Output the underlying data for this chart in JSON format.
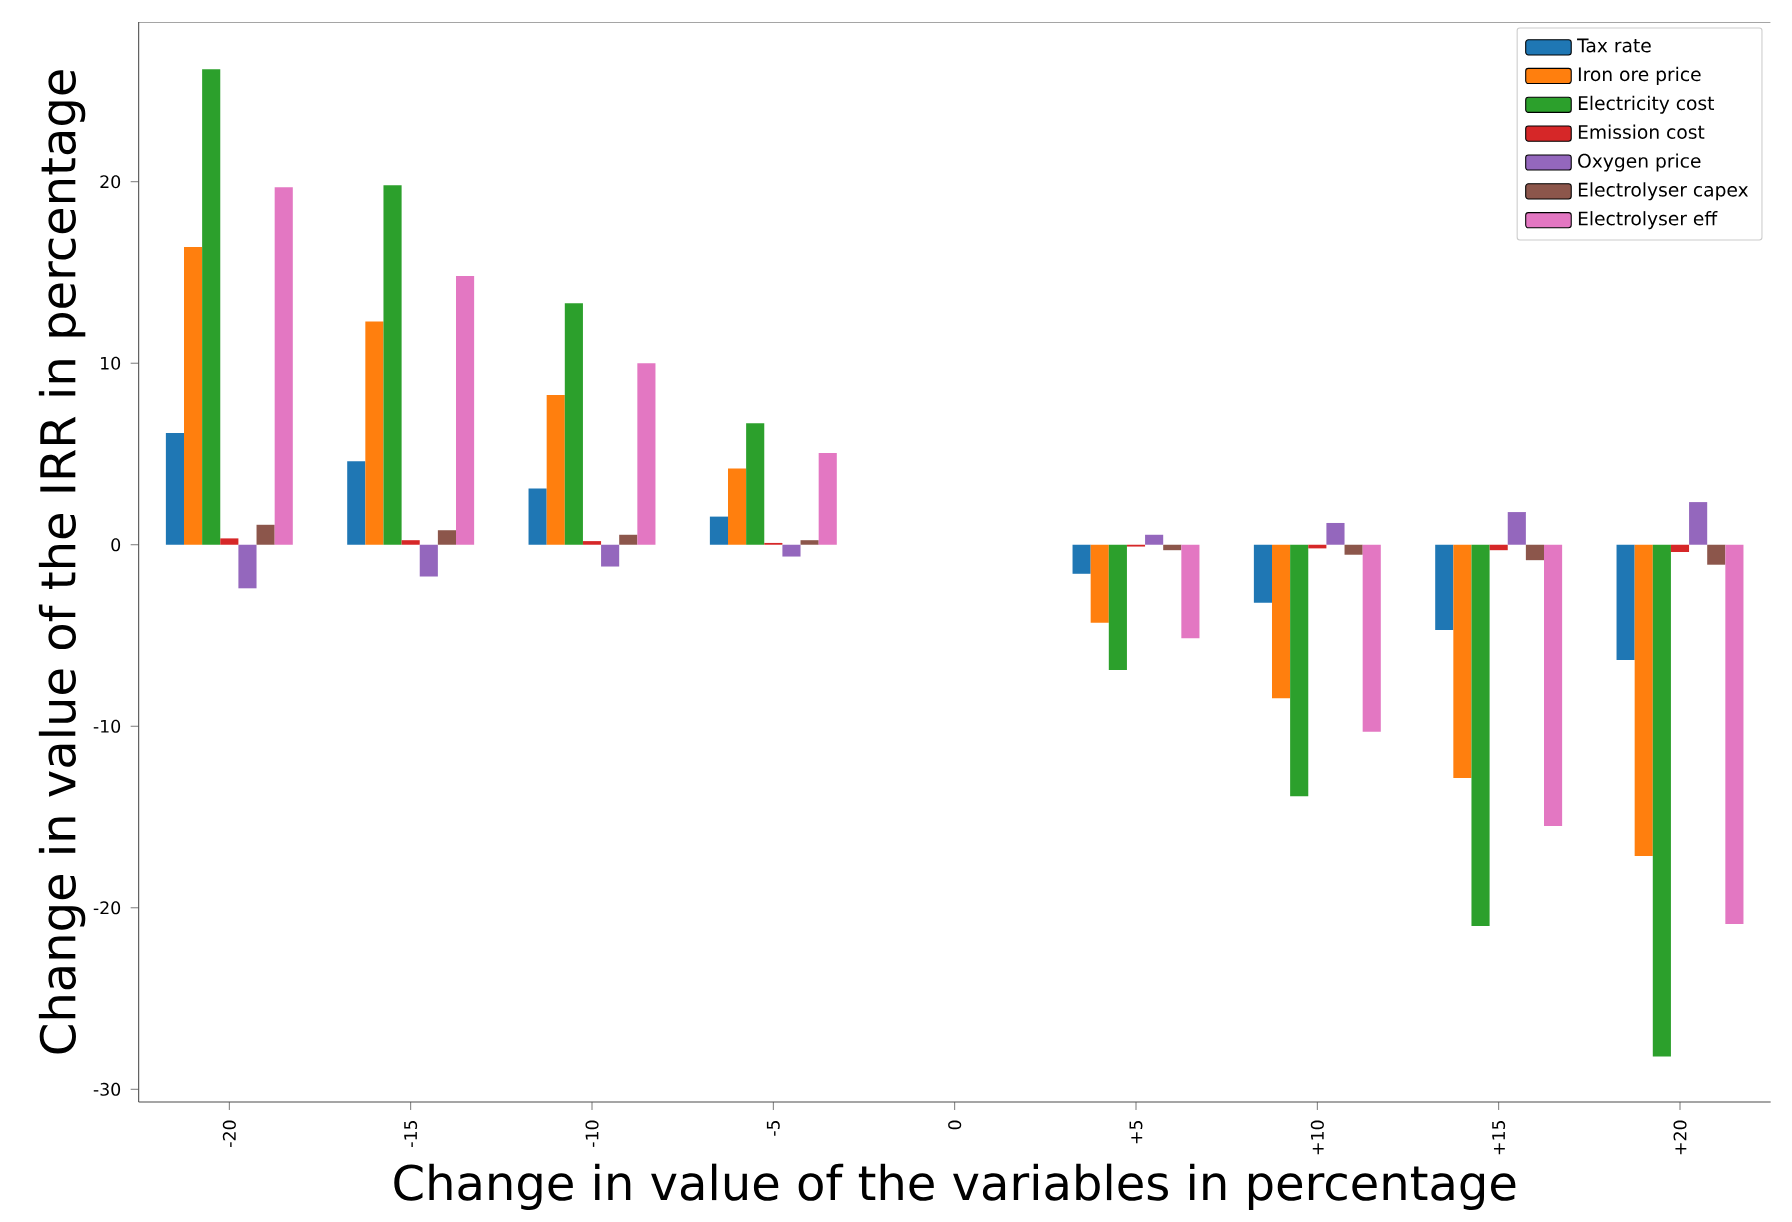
{
  "chart_data": {
    "type": "bar",
    "xlabel": "Change in value of the variables in percentage",
    "ylabel": "Change in value of the IRR in percentage",
    "categories": [
      "-20",
      "-15",
      "-10",
      "-5",
      "0",
      "+5",
      "+10",
      "+15",
      "+20"
    ],
    "series": [
      {
        "name": "Tax rate",
        "color": "#1f77b4",
        "values": [
          6.15,
          4.6,
          3.1,
          1.55,
          0,
          -1.6,
          -3.2,
          -4.7,
          -6.35
        ]
      },
      {
        "name": "Iron ore price",
        "color": "#ff7f0e",
        "values": [
          16.4,
          12.3,
          8.25,
          4.2,
          0,
          -4.3,
          -8.45,
          -12.85,
          -17.15
        ]
      },
      {
        "name": "Electricity cost",
        "color": "#2ca02c",
        "values": [
          26.2,
          19.8,
          13.3,
          6.7,
          0,
          -6.9,
          -13.85,
          -21,
          -28.2
        ]
      },
      {
        "name": "Emission cost",
        "color": "#d62728",
        "values": [
          0.35,
          0.25,
          0.2,
          0.1,
          0,
          -0.1,
          -0.2,
          -0.3,
          -0.4
        ]
      },
      {
        "name": "Oxygen price",
        "color": "#9467bd",
        "values": [
          -2.4,
          -1.75,
          -1.2,
          -0.65,
          0,
          0.55,
          1.2,
          1.8,
          2.35
        ]
      },
      {
        "name": "Electrolyser capex",
        "color": "#8c564b",
        "values": [
          1.1,
          0.8,
          0.55,
          0.25,
          0,
          -0.3,
          -0.55,
          -0.85,
          -1.1
        ]
      },
      {
        "name": "Electrolyser eff",
        "color": "#e377c2",
        "values": [
          19.7,
          14.8,
          10.0,
          5.05,
          0,
          -5.15,
          -10.3,
          -15.5,
          -20.9
        ]
      }
    ],
    "ylim": [
      -30.7,
      28.8
    ],
    "yticks": [
      -30,
      -20,
      -10,
      0,
      10,
      20
    ],
    "legend": "top right",
    "grid": false
  }
}
